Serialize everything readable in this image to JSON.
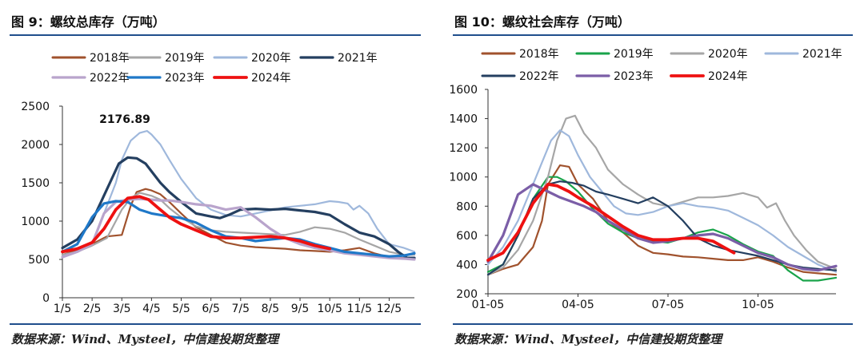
{
  "panels": [
    {
      "title": "图 9：螺纹总库存（万吨）",
      "source": "数据来源：Wind、Mysteel，中信建投期货整理"
    },
    {
      "title": "图 10：螺纹社会库存（万吨）",
      "source": "数据来源：Wind、Mysteel，中信建投期货整理"
    }
  ],
  "chart_data": [
    {
      "type": "line",
      "title": "螺纹总库存（万吨）",
      "x_ticks": [
        "1/5",
        "2/5",
        "3/5",
        "4/5",
        "5/5",
        "6/5",
        "7/5",
        "8/5",
        "9/5",
        "10/5",
        "11/5",
        "12/5"
      ],
      "x_domain": [
        0,
        11.85
      ],
      "ylim": [
        0,
        2500
      ],
      "y_ticks": [
        0,
        500,
        1000,
        1500,
        2000,
        2500
      ],
      "annotation": {
        "text": "2176.89",
        "x": 2.1,
        "y": 2177
      },
      "series": [
        {
          "name": "2018年",
          "color": "#a0522d",
          "width": 2.2,
          "x": [
            0,
            0.5,
            1,
            1.5,
            2,
            2.3,
            2.5,
            2.8,
            3,
            3.3,
            3.6,
            4,
            4.5,
            5,
            5.5,
            6,
            6.5,
            7,
            7.5,
            8,
            8.5,
            9,
            9.5,
            10,
            10.5,
            11,
            11.5,
            11.85
          ],
          "y": [
            560,
            620,
            700,
            800,
            820,
            1200,
            1380,
            1420,
            1400,
            1350,
            1250,
            1100,
            920,
            820,
            720,
            680,
            660,
            650,
            640,
            620,
            610,
            600,
            620,
            650,
            580,
            530,
            520,
            520
          ]
        },
        {
          "name": "2019年",
          "color": "#a6a6a6",
          "width": 2.2,
          "x": [
            0,
            0.5,
            1,
            1.5,
            2,
            2.3,
            2.6,
            3,
            3.3,
            3.6,
            4,
            4.5,
            5,
            5.5,
            6,
            6.5,
            7,
            7.5,
            8,
            8.5,
            9,
            9.5,
            10,
            10.5,
            11,
            11.5,
            11.85
          ],
          "y": [
            560,
            600,
            680,
            780,
            1150,
            1300,
            1370,
            1330,
            1280,
            1170,
            1050,
            930,
            880,
            860,
            850,
            840,
            830,
            820,
            860,
            920,
            900,
            850,
            760,
            680,
            600,
            560,
            560
          ]
        },
        {
          "name": "2020年",
          "color": "#9fb8dc",
          "width": 2.2,
          "x": [
            0,
            0.5,
            1,
            1.5,
            1.8,
            2,
            2.3,
            2.6,
            2.85,
            3,
            3.3,
            3.6,
            4,
            4.5,
            5,
            5.5,
            6,
            6.5,
            7,
            7.5,
            8,
            8.5,
            9,
            9.3,
            9.6,
            9.8,
            10,
            10.3,
            10.6,
            11,
            11.5,
            11.85
          ],
          "y": [
            540,
            600,
            700,
            1200,
            1500,
            1800,
            2050,
            2150,
            2177,
            2130,
            2000,
            1800,
            1550,
            1300,
            1150,
            1080,
            1060,
            1100,
            1140,
            1180,
            1200,
            1220,
            1260,
            1250,
            1230,
            1150,
            1200,
            1100,
            900,
            700,
            650,
            600
          ]
        },
        {
          "name": "2021年",
          "color": "#243f60",
          "width": 3.2,
          "x": [
            0,
            0.5,
            1,
            1.3,
            1.6,
            1.9,
            2.2,
            2.5,
            2.8,
            3,
            3.3,
            3.6,
            4,
            4.5,
            5,
            5.3,
            5.6,
            6,
            6.5,
            7,
            7.5,
            8,
            8.5,
            9,
            9.5,
            10,
            10.5,
            11,
            11.3,
            11.6,
            11.85
          ],
          "y": [
            650,
            760,
            1000,
            1250,
            1500,
            1750,
            1830,
            1820,
            1750,
            1650,
            1500,
            1380,
            1250,
            1100,
            1060,
            1040,
            1080,
            1150,
            1160,
            1150,
            1160,
            1140,
            1120,
            1080,
            960,
            850,
            800,
            700,
            600,
            520,
            520
          ]
        },
        {
          "name": "2022年",
          "color": "#b9a4cc",
          "width": 3.2,
          "x": [
            0,
            0.5,
            1,
            1.4,
            1.8,
            2.2,
            2.6,
            3,
            3.3,
            3.6,
            4,
            4.5,
            5,
            5.5,
            6,
            6.5,
            7,
            7.5,
            8,
            8.5,
            9,
            9.5,
            10,
            10.5,
            11,
            11.5,
            11.85
          ],
          "y": [
            530,
            600,
            700,
            1100,
            1250,
            1280,
            1290,
            1280,
            1270,
            1270,
            1250,
            1220,
            1200,
            1150,
            1180,
            1050,
            900,
            780,
            700,
            650,
            620,
            580,
            560,
            540,
            520,
            510,
            500
          ]
        },
        {
          "name": "2023年",
          "color": "#1f78c8",
          "width": 3.2,
          "x": [
            0,
            0.5,
            1,
            1.4,
            1.8,
            2.2,
            2.6,
            3,
            3.3,
            3.6,
            4,
            4.5,
            5,
            5.5,
            6,
            6.5,
            7,
            7.5,
            8,
            8.5,
            9,
            9.5,
            10,
            10.5,
            11,
            11.5,
            11.85
          ],
          "y": [
            600,
            700,
            1050,
            1230,
            1260,
            1250,
            1150,
            1100,
            1080,
            1060,
            1040,
            980,
            880,
            800,
            780,
            740,
            760,
            780,
            760,
            700,
            650,
            600,
            580,
            560,
            540,
            550,
            580
          ]
        },
        {
          "name": "2024年",
          "color": "#ee1111",
          "width": 3.8,
          "x": [
            0,
            0.5,
            1,
            1.4,
            1.8,
            2.2,
            2.6,
            2.9,
            3.2,
            3.6,
            4,
            4.5,
            5,
            5.5,
            6,
            6.5,
            7,
            7.5,
            8,
            8.5,
            9
          ],
          "y": [
            600,
            640,
            720,
            900,
            1150,
            1300,
            1320,
            1280,
            1180,
            1050,
            960,
            880,
            800,
            780,
            780,
            790,
            800,
            780,
            740,
            680,
            640
          ]
        }
      ]
    },
    {
      "type": "line",
      "title": "螺纹社会库存（万吨）",
      "x_ticks": [
        "01-05",
        "04-05",
        "07-05",
        "10-05"
      ],
      "x_tick_pos": [
        0,
        3,
        6,
        9
      ],
      "x_domain": [
        0,
        11.6
      ],
      "ylim": [
        200,
        1600
      ],
      "y_ticks": [
        200,
        400,
        600,
        800,
        1000,
        1200,
        1400,
        1600
      ],
      "series": [
        {
          "name": "2018年",
          "color": "#a0522d",
          "width": 2.2,
          "x": [
            0,
            0.5,
            1,
            1.5,
            1.8,
            2,
            2.4,
            2.7,
            3,
            3.5,
            4,
            4.5,
            5,
            5.5,
            6,
            6.5,
            7,
            7.5,
            8,
            8.5,
            9,
            9.5,
            10,
            10.5,
            11,
            11.6
          ],
          "y": [
            330,
            370,
            400,
            520,
            700,
            950,
            1080,
            1070,
            950,
            850,
            700,
            620,
            530,
            480,
            470,
            455,
            450,
            440,
            430,
            430,
            450,
            420,
            380,
            350,
            340,
            330
          ]
        },
        {
          "name": "2019年",
          "color": "#19a34a",
          "width": 2.2,
          "x": [
            0,
            0.5,
            1,
            1.5,
            2,
            2.3,
            2.6,
            3,
            3.5,
            4,
            4.5,
            5,
            5.5,
            6,
            6.5,
            7,
            7.5,
            8,
            8.5,
            9,
            9.5,
            10,
            10.5,
            11,
            11.6
          ],
          "y": [
            350,
            400,
            600,
            850,
            1000,
            1000,
            970,
            900,
            780,
            680,
            620,
            580,
            560,
            550,
            580,
            620,
            640,
            600,
            540,
            490,
            460,
            360,
            290,
            290,
            310
          ]
        },
        {
          "name": "2020年",
          "color": "#a6a6a6",
          "width": 2.2,
          "x": [
            0,
            0.5,
            1,
            1.5,
            2,
            2.3,
            2.6,
            2.9,
            3.2,
            3.6,
            4,
            4.5,
            5,
            5.5,
            6,
            6.5,
            7,
            7.5,
            8,
            8.5,
            9,
            9.3,
            9.6,
            9.9,
            10.2,
            10.6,
            11,
            11.6
          ],
          "y": [
            330,
            380,
            500,
            700,
            1000,
            1250,
            1400,
            1420,
            1300,
            1200,
            1050,
            950,
            880,
            820,
            800,
            830,
            860,
            860,
            870,
            890,
            860,
            790,
            820,
            700,
            600,
            500,
            420,
            370
          ]
        },
        {
          "name": "2021年",
          "color": "#9fb8dc",
          "width": 2.2,
          "x": [
            0,
            0.5,
            1,
            1.5,
            1.8,
            2.1,
            2.4,
            2.7,
            3,
            3.4,
            3.8,
            4.2,
            4.6,
            5,
            5.5,
            6,
            6.5,
            7,
            7.5,
            8,
            8.5,
            9,
            9.5,
            10,
            10.5,
            11,
            11.6
          ],
          "y": [
            400,
            520,
            700,
            950,
            1100,
            1250,
            1320,
            1280,
            1150,
            1000,
            900,
            800,
            750,
            740,
            760,
            800,
            820,
            800,
            790,
            770,
            720,
            670,
            600,
            520,
            460,
            400,
            350
          ]
        },
        {
          "name": "2022年",
          "color": "#243f60",
          "width": 2.2,
          "x": [
            0,
            0.5,
            1,
            1.5,
            2,
            2.4,
            2.8,
            3.2,
            3.6,
            4,
            4.5,
            5,
            5.5,
            6,
            6.5,
            7,
            7.5,
            8,
            8.5,
            9,
            9.5,
            10,
            10.5,
            11,
            11.6
          ],
          "y": [
            330,
            400,
            600,
            850,
            950,
            970,
            960,
            940,
            900,
            880,
            850,
            820,
            860,
            800,
            700,
            580,
            530,
            500,
            480,
            460,
            430,
            400,
            380,
            370,
            360
          ]
        },
        {
          "name": "2023年",
          "color": "#7b5ea7",
          "width": 3.2,
          "x": [
            0,
            0.5,
            1,
            1.5,
            2,
            2.4,
            2.8,
            3.2,
            3.6,
            4,
            4.5,
            5,
            5.5,
            6,
            6.5,
            7,
            7.5,
            8,
            8.5,
            9,
            9.5,
            10,
            10.5,
            11,
            11.6
          ],
          "y": [
            420,
            600,
            880,
            950,
            900,
            860,
            830,
            800,
            760,
            700,
            640,
            580,
            550,
            560,
            580,
            600,
            610,
            580,
            530,
            480,
            450,
            400,
            370,
            360,
            390
          ]
        },
        {
          "name": "2024年",
          "color": "#ee1111",
          "width": 3.8,
          "x": [
            0,
            0.5,
            1,
            1.5,
            2,
            2.3,
            2.7,
            3,
            3.5,
            4,
            4.5,
            5,
            5.5,
            6,
            6.5,
            7,
            7.5,
            8.2
          ],
          "y": [
            430,
            480,
            620,
            820,
            950,
            940,
            900,
            860,
            800,
            730,
            660,
            600,
            570,
            570,
            580,
            580,
            560,
            480
          ]
        }
      ]
    }
  ]
}
